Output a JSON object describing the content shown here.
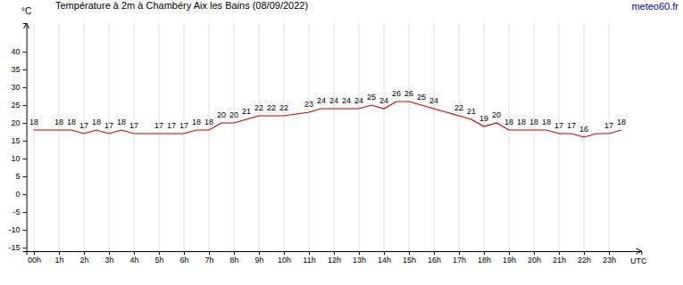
{
  "chart_data": {
    "type": "line",
    "title": "Température à 2m à Chambéry Aix les Bains (08/09/2022)",
    "annotation": "meteo60.fr",
    "ylabel": "°C",
    "xlabel": "UTC",
    "color": "#cc0000",
    "grid": true,
    "data_labels": true,
    "x": [
      0,
      0.5,
      1,
      1.5,
      2,
      2.5,
      3,
      3.5,
      4,
      4.5,
      5,
      5.5,
      6,
      6.5,
      7,
      7.5,
      8,
      8.5,
      9,
      9.5,
      10,
      10.5,
      11,
      11.5,
      12,
      12.5,
      13,
      13.5,
      14,
      14.5,
      15,
      15.5,
      16,
      16.5,
      17,
      17.5,
      18,
      18.5,
      19,
      19.5,
      20,
      20.5,
      21,
      21.5,
      22,
      22.5,
      23,
      23.5
    ],
    "values": [
      18,
      18,
      18,
      18,
      17,
      18,
      17,
      18,
      17,
      17,
      17,
      17,
      17,
      18,
      18,
      20,
      20,
      21,
      22,
      22,
      22,
      22.5,
      23,
      24,
      24,
      24,
      24,
      25,
      24,
      26,
      26,
      25,
      24,
      23,
      22,
      21,
      19,
      20,
      18,
      18,
      18,
      18,
      17,
      17,
      16,
      17,
      17,
      18
    ],
    "value_labels": [
      "18",
      null,
      "18",
      "18",
      "17",
      "18",
      "17",
      "18",
      "17",
      null,
      "17",
      "17",
      "17",
      "18",
      "18",
      "20",
      "20",
      "21",
      "22",
      "22",
      "22",
      null,
      "23",
      "24",
      "24",
      "24",
      "24",
      "25",
      "24",
      "26",
      "26",
      "25",
      "24",
      null,
      "22",
      "21",
      "19",
      "20",
      "18",
      "18",
      "18",
      "18",
      "17",
      "17",
      "16",
      null,
      "17",
      "18"
    ],
    "xlim": [
      -0.3,
      24.3
    ],
    "xticks": [
      {
        "value": 0,
        "label": "00h"
      },
      {
        "value": 1,
        "label": "1h"
      },
      {
        "value": 2,
        "label": "2h"
      },
      {
        "value": 3,
        "label": "3h"
      },
      {
        "value": 4,
        "label": "4h"
      },
      {
        "value": 5,
        "label": "5h"
      },
      {
        "value": 6,
        "label": "6h"
      },
      {
        "value": 7,
        "label": "7h"
      },
      {
        "value": 8,
        "label": "8h"
      },
      {
        "value": 9,
        "label": "9h"
      },
      {
        "value": 10,
        "label": "10h"
      },
      {
        "value": 11,
        "label": "11h"
      },
      {
        "value": 12,
        "label": "12h"
      },
      {
        "value": 13,
        "label": "13h"
      },
      {
        "value": 14,
        "label": "14h"
      },
      {
        "value": 15,
        "label": "15h"
      },
      {
        "value": 16,
        "label": "16h"
      },
      {
        "value": 17,
        "label": "17h"
      },
      {
        "value": 18,
        "label": "18h"
      },
      {
        "value": 19,
        "label": "19h"
      },
      {
        "value": 20,
        "label": "20h"
      },
      {
        "value": 21,
        "label": "21h"
      },
      {
        "value": 22,
        "label": "22h"
      },
      {
        "value": 23,
        "label": "23h"
      }
    ],
    "ylim": [
      -16,
      48
    ],
    "yticks": [
      -15,
      -10,
      -5,
      0,
      5,
      10,
      15,
      20,
      25,
      30,
      35,
      40
    ]
  }
}
